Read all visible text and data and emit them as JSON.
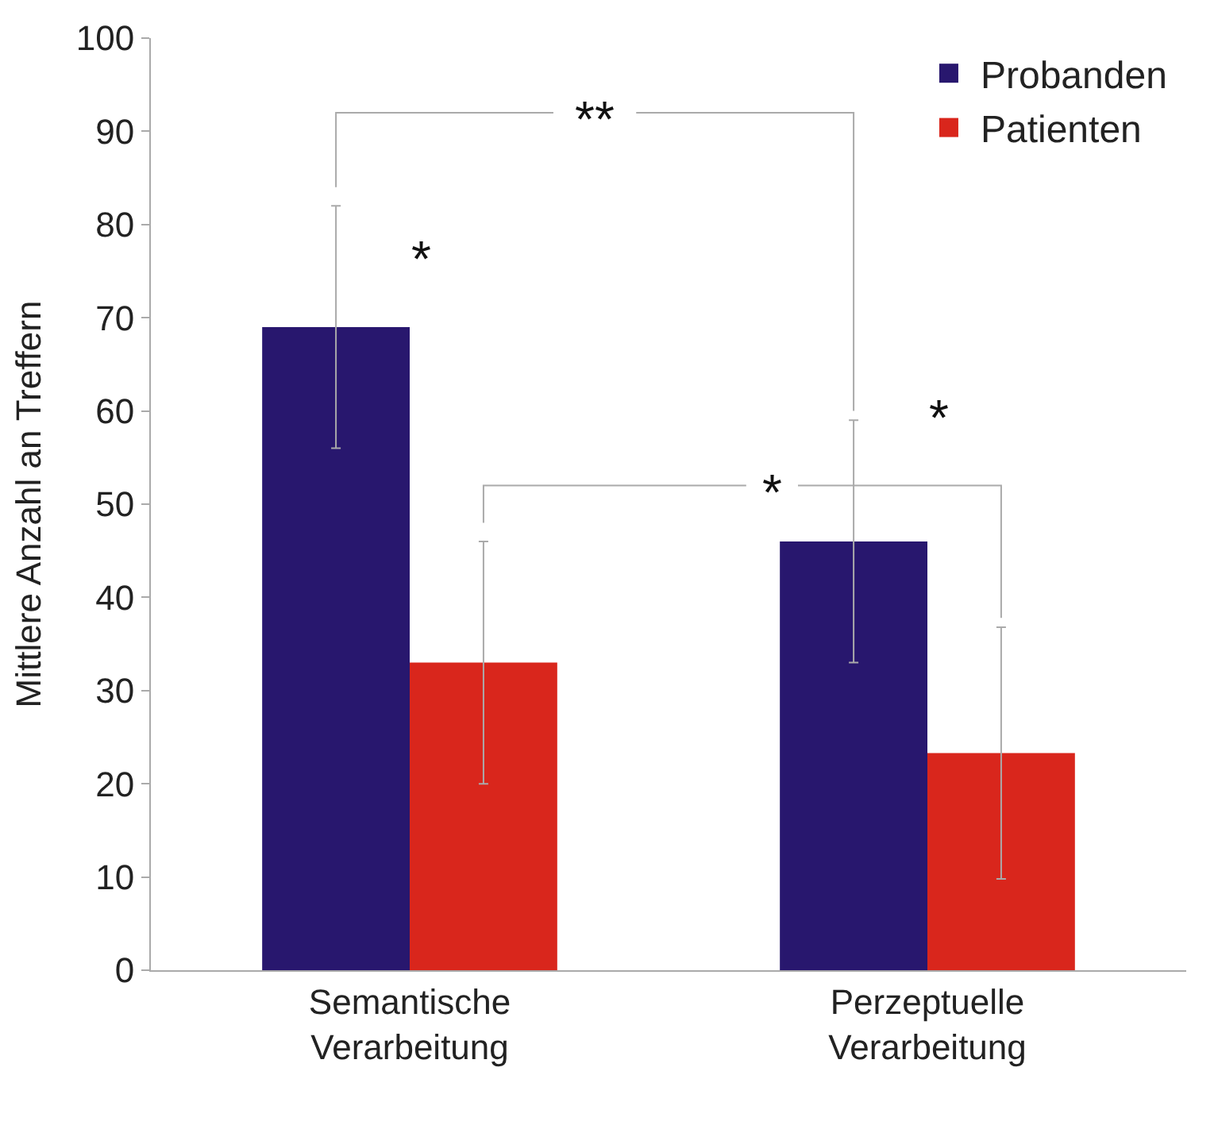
{
  "chart_data": {
    "type": "bar",
    "ylabel": "Mittlere Anzahl an Treffern",
    "categories": [
      "Semantische\nVerarbeitung",
      "Perzeptuelle\nVerarbeitung"
    ],
    "series": [
      {
        "name": "Probanden",
        "color": "#28176e",
        "values": [
          69,
          46
        ],
        "errors": [
          13,
          13
        ]
      },
      {
        "name": "Patienten",
        "color": "#d9261c",
        "values": [
          33,
          23.3
        ],
        "errors": [
          13,
          13.5
        ]
      }
    ],
    "ylim": [
      0,
      100
    ],
    "yticks": [
      0,
      10,
      20,
      30,
      40,
      50,
      60,
      70,
      80,
      90,
      100
    ],
    "legend": "top right",
    "annotations": [
      "**",
      "*",
      "*",
      "*"
    ]
  }
}
